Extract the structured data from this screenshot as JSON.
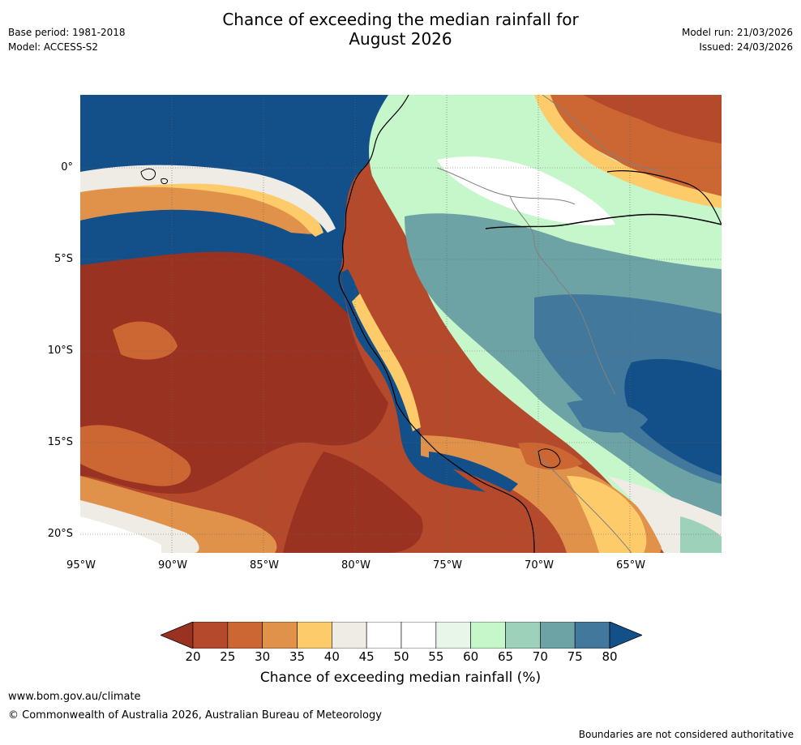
{
  "header": {
    "base_period": "Base period: 1981-2018",
    "model": "Model: ACCESS-S2",
    "title_line1": "Chance of exceeding the median rainfall for",
    "title_line2": "August 2026",
    "model_run": "Model run: 21/03/2026",
    "issued": "Issued: 24/03/2026"
  },
  "map": {
    "lat_labels": [
      "0°",
      "5°S",
      "10°S",
      "15°S",
      "20°S"
    ],
    "lon_labels": [
      "95°W",
      "90°W",
      "85°W",
      "80°W",
      "75°W",
      "70°W",
      "65°W"
    ],
    "regions": {
      "pacific_dry": "#9a3222",
      "pacific_mod": "#b5492b",
      "coastal_wet": "#13508a",
      "interior_moist": "#6da3a5",
      "interior_wet": "#41789b",
      "neutral": "#efece6",
      "light_green": "#c6f7cb"
    }
  },
  "colorbar": {
    "ticks": [
      "20",
      "25",
      "30",
      "35",
      "40",
      "45",
      "50",
      "55",
      "60",
      "65",
      "70",
      "75",
      "80"
    ],
    "colors": [
      "#9a3222",
      "#b5492b",
      "#cc6733",
      "#e1924a",
      "#fecb6b",
      "#efece6",
      "#ffffff",
      "#ffffff",
      "#e8f5e9",
      "#c6f7cb",
      "#9ed1ba",
      "#6da3a5",
      "#41789b",
      "#13508a"
    ],
    "title": "Chance of exceeding median rainfall (%)"
  },
  "footer": {
    "url": "www.bom.gov.au/climate",
    "copyright": "© Commonwealth of Australia 2026, Australian Bureau of Meteorology",
    "disclaimer": "Boundaries are not considered authoritative"
  }
}
